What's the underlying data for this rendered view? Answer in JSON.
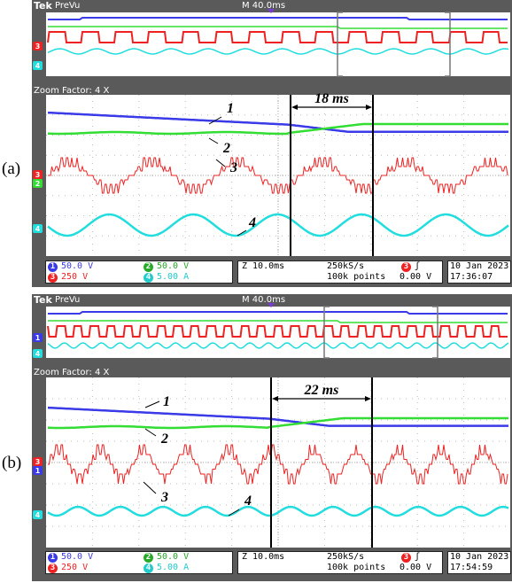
{
  "panels": [
    {
      "label": "(a)",
      "header": {
        "brand": "Tek",
        "mode": "PreVu",
        "timebase": "M 40.0ms"
      },
      "zoom_factor": "Zoom Factor: 4 X",
      "interval_label": "18 ms",
      "trace_labels": [
        "1",
        "2",
        "3",
        "4"
      ],
      "footer": {
        "ch1": "50.0 V",
        "ch2": "50.0 V",
        "ch3": "250 V",
        "ch4": "5.00 A",
        "zoom_time": "Z 10.0ms",
        "sample_rate": "250kS/s",
        "record_length": "100k points",
        "trigger_channel": "3",
        "trigger_level": "0.00 V",
        "date": "10 Jan  2023",
        "time": "17:36:07"
      }
    },
    {
      "label": "(b)",
      "header": {
        "brand": "Tek",
        "mode": "PreVu",
        "timebase": "M 40.0ms"
      },
      "zoom_factor": "Zoom Factor: 4 X",
      "interval_label": "22 ms",
      "trace_labels": [
        "1",
        "2",
        "3",
        "4"
      ],
      "footer": {
        "ch1": "50.0 V",
        "ch2": "50.0 V",
        "ch3": "250 V",
        "ch4": "5.00 A",
        "zoom_time": "Z 10.0ms",
        "sample_rate": "250kS/s",
        "record_length": "100k points",
        "trigger_channel": "3",
        "trigger_level": "0.00 V",
        "date": "10 Jan  2023",
        "time": "17:54:59"
      }
    }
  ],
  "colors": {
    "ch1": "#3a3ae8",
    "ch2": "#33dd33",
    "ch3": "#ee2222",
    "ch4": "#22dddd",
    "screen_bg": "#ffffff",
    "bezel": "#5a5a5a"
  }
}
